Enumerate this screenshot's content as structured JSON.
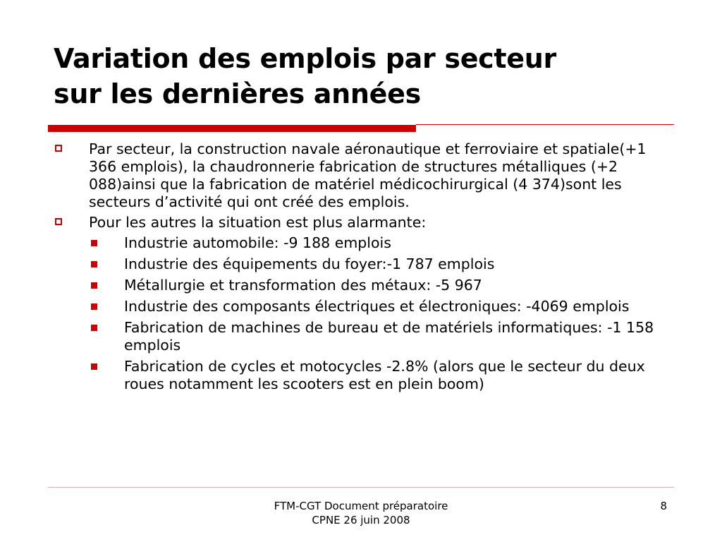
{
  "slide": {
    "title_line1": "Variation des emplois par secteur",
    "title_line2": "sur les dernières années",
    "accent_color": "#cc0000",
    "bullets": [
      {
        "level": 1,
        "text": "Par secteur, la construction navale aéronautique et ferroviaire et spatiale(+1 366 emplois), la chaudronnerie fabrication de structures métalliques (+2 088)ainsi que la fabrication de matériel médicochirurgical (4 374)sont les secteurs d’activité qui ont créé des emplois.",
        "icon": "hollow-square-bullet-icon"
      },
      {
        "level": 1,
        "text": "Pour les autres la situation est plus alarmante:",
        "icon": "hollow-square-bullet-icon"
      },
      {
        "level": 2,
        "text": "Industrie automobile: -9 188 emplois",
        "icon": "filled-square-bullet-icon"
      },
      {
        "level": 2,
        "text": "Industrie des équipements du foyer:-1 787 emplois",
        "icon": "filled-square-bullet-icon"
      },
      {
        "level": 2,
        "text": "Métallurgie et transformation des métaux: -5 967",
        "icon": "filled-square-bullet-icon"
      },
      {
        "level": 2,
        "text": "Industrie des composants électriques et électroniques: -4069 emplois",
        "icon": "filled-square-bullet-icon"
      },
      {
        "level": 2,
        "text": "Fabrication de machines de bureau et de matériels informatiques: -1 158 emplois",
        "icon": "filled-square-bullet-icon"
      },
      {
        "level": 2,
        "text": "Fabrication de cycles et motocycles -2.8% (alors que le secteur du deux roues notamment les scooters est en plein boom)",
        "icon": "filled-square-bullet-icon"
      }
    ]
  },
  "footer": {
    "line1": "FTM-CGT Document préparatoire",
    "line2": "CPNE 26 juin 2008",
    "page_number": "8"
  }
}
